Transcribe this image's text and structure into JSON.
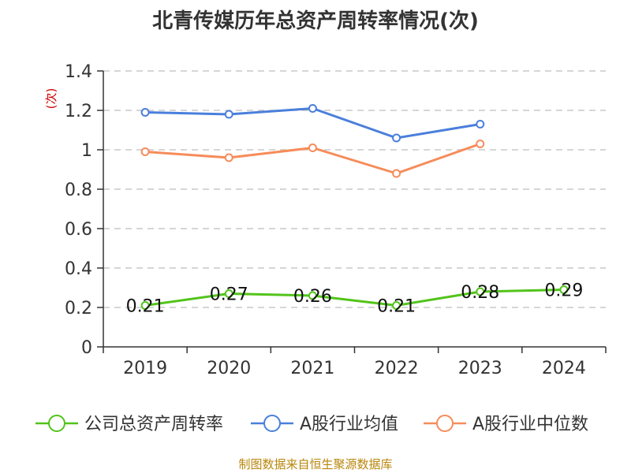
{
  "chart_data": {
    "type": "line",
    "title": "北青传媒历年总资产周转率情况(次)",
    "ylabel": "(次)",
    "xlabel": "",
    "categories": [
      "2019",
      "2020",
      "2021",
      "2022",
      "2023",
      "2024"
    ],
    "y_ticks": [
      "0",
      "0.2",
      "0.4",
      "0.6",
      "0.8",
      "1",
      "1.2",
      "1.4"
    ],
    "ylim": [
      0,
      1.4
    ],
    "grid": true,
    "legend_position": "bottom",
    "series": [
      {
        "name": "公司总资产周转率",
        "color": "#52c41a",
        "values": [
          0.21,
          0.27,
          0.26,
          0.21,
          0.28,
          0.29
        ],
        "labels": [
          "0.21",
          "0.27",
          "0.26",
          "0.21",
          "0.28",
          "0.29"
        ]
      },
      {
        "name": "A股行业均值",
        "color": "#4a7fdc",
        "values": [
          1.19,
          1.18,
          1.21,
          1.06,
          1.13,
          null
        ]
      },
      {
        "name": "A股行业中位数",
        "color": "#f68c5a",
        "values": [
          0.99,
          0.96,
          1.01,
          0.88,
          1.03,
          null
        ]
      }
    ]
  },
  "source_text": "制图数据来自恒生聚源数据库"
}
